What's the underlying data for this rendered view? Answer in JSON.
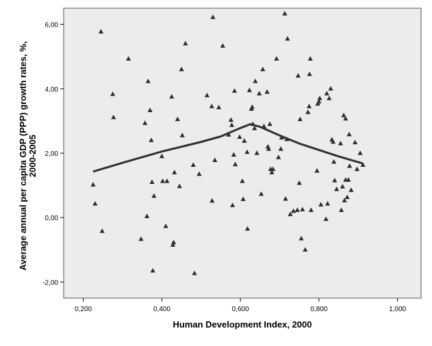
{
  "chart_data": {
    "type": "scatter",
    "xlabel": "Human Development Index, 2000",
    "ylabel_line1": "Average annual per capita GDP (PPP) growth rates, %,",
    "ylabel_line2": "2000-2005",
    "xlim": [
      0.15,
      1.06
    ],
    "ylim": [
      -2.5,
      6.5
    ],
    "x_ticks": [
      0.2,
      0.4,
      0.6,
      0.8,
      1.0
    ],
    "x_tick_labels": [
      "0,200",
      "0,400",
      "0,600",
      "0,800",
      "1,000"
    ],
    "y_ticks": [
      -2,
      0,
      2,
      4,
      6
    ],
    "y_tick_labels": [
      "-2,00",
      "0,00",
      "2,00",
      "4,00",
      "6,00"
    ],
    "grid": false,
    "legend": "none",
    "colors": {
      "plot_background": "#ececec",
      "marker": "#2e2e2e",
      "fit_line": "#303030"
    },
    "series": [
      {
        "values_kind": "scatter-triangles",
        "points": [
          [
            0.225,
            1.02
          ],
          [
            0.23,
            0.43
          ],
          [
            0.245,
            5.77
          ],
          [
            0.248,
            -0.42
          ],
          [
            0.275,
            3.83
          ],
          [
            0.277,
            3.11
          ],
          [
            0.315,
            4.93
          ],
          [
            0.347,
            -0.67
          ],
          [
            0.357,
            2.93
          ],
          [
            0.362,
            0.04
          ],
          [
            0.365,
            4.23
          ],
          [
            0.37,
            3.33
          ],
          [
            0.373,
            2.4
          ],
          [
            0.375,
            1.1
          ],
          [
            0.377,
            -1.65
          ],
          [
            0.38,
            0.67
          ],
          [
            0.4,
            1.9
          ],
          [
            0.402,
            1.13
          ],
          [
            0.41,
            -0.27
          ],
          [
            0.413,
            1.13
          ],
          [
            0.425,
            3.75
          ],
          [
            0.428,
            -0.85
          ],
          [
            0.43,
            -0.77
          ],
          [
            0.432,
            1.4
          ],
          [
            0.44,
            3.05
          ],
          [
            0.445,
            0.97
          ],
          [
            0.45,
            4.6
          ],
          [
            0.452,
            2.55
          ],
          [
            0.46,
            5.4
          ],
          [
            0.48,
            1.63
          ],
          [
            0.483,
            -1.73
          ],
          [
            0.495,
            1.35
          ],
          [
            0.515,
            3.79
          ],
          [
            0.527,
            3.45
          ],
          [
            0.528,
            0.52
          ],
          [
            0.53,
            6.22
          ],
          [
            0.535,
            1.78
          ],
          [
            0.545,
            3.42
          ],
          [
            0.555,
            5.33
          ],
          [
            0.57,
            2.57
          ],
          [
            0.576,
            3.03
          ],
          [
            0.578,
            2.87
          ],
          [
            0.58,
            0.38
          ],
          [
            0.583,
            1.95
          ],
          [
            0.585,
            3.93
          ],
          [
            0.587,
            1.65
          ],
          [
            0.598,
            2.5
          ],
          [
            0.605,
            1.13
          ],
          [
            0.607,
            0.57
          ],
          [
            0.61,
            2.38
          ],
          [
            0.617,
            2.03
          ],
          [
            0.618,
            -0.35
          ],
          [
            0.623,
            3.95
          ],
          [
            0.628,
            3.37
          ],
          [
            0.63,
            3.43
          ],
          [
            0.632,
            2.9
          ],
          [
            0.636,
            2.77
          ],
          [
            0.638,
            4.23
          ],
          [
            0.642,
            2.0
          ],
          [
            0.648,
            3.85
          ],
          [
            0.653,
            0.73
          ],
          [
            0.657,
            4.6
          ],
          [
            0.66,
            2.83
          ],
          [
            0.668,
            3.9
          ],
          [
            0.67,
            2.2
          ],
          [
            0.672,
            2.13
          ],
          [
            0.675,
            2.9
          ],
          [
            0.677,
            1.5
          ],
          [
            0.68,
            1.4
          ],
          [
            0.683,
            1.5
          ],
          [
            0.692,
            4.93
          ],
          [
            0.697,
            1.87
          ],
          [
            0.703,
            2.13
          ],
          [
            0.705,
            2.48
          ],
          [
            0.713,
            6.33
          ],
          [
            0.718,
            2.43
          ],
          [
            0.715,
            0.58
          ],
          [
            0.72,
            5.55
          ],
          [
            0.727,
            0.1
          ],
          [
            0.735,
            0.2
          ],
          [
            0.745,
            0.23
          ],
          [
            0.747,
            4.4
          ],
          [
            0.75,
            1.07
          ],
          [
            0.752,
            3.05
          ],
          [
            0.755,
            -0.65
          ],
          [
            0.758,
            0.25
          ],
          [
            0.765,
            -1.0
          ],
          [
            0.772,
            3.27
          ],
          [
            0.775,
            3.45
          ],
          [
            0.776,
            4.45
          ],
          [
            0.778,
            4.93
          ],
          [
            0.78,
            0.23
          ],
          [
            0.795,
            1.45
          ],
          [
            0.797,
            3.53
          ],
          [
            0.8,
            3.6
          ],
          [
            0.802,
            3.7
          ],
          [
            0.805,
            0.4
          ],
          [
            0.818,
            -0.05
          ],
          [
            0.82,
            3.85
          ],
          [
            0.822,
            0.43
          ],
          [
            0.826,
            3.7
          ],
          [
            0.83,
            4.0
          ],
          [
            0.833,
            2.42
          ],
          [
            0.836,
            2.35
          ],
          [
            0.838,
            1.73
          ],
          [
            0.84,
            1.15
          ],
          [
            0.845,
            0.88
          ],
          [
            0.855,
            2.3
          ],
          [
            0.857,
            0.23
          ],
          [
            0.86,
            0.96
          ],
          [
            0.863,
            3.17
          ],
          [
            0.865,
            0.53
          ],
          [
            0.868,
            1.17
          ],
          [
            0.868,
            3.07
          ],
          [
            0.872,
            0.63
          ],
          [
            0.875,
            1.17
          ],
          [
            0.877,
            2.58
          ],
          [
            0.878,
            1.6
          ],
          [
            0.882,
            0.85
          ],
          [
            0.892,
            2.33
          ],
          [
            0.897,
            1.5
          ],
          [
            0.905,
            2.0
          ],
          [
            0.912,
            1.63
          ]
        ]
      }
    ],
    "fit_line": [
      [
        0.225,
        1.43
      ],
      [
        0.3,
        1.7
      ],
      [
        0.4,
        2.05
      ],
      [
        0.5,
        2.35
      ],
      [
        0.55,
        2.52
      ],
      [
        0.6,
        2.78
      ],
      [
        0.625,
        2.9
      ],
      [
        0.65,
        2.82
      ],
      [
        0.7,
        2.55
      ],
      [
        0.75,
        2.3
      ],
      [
        0.8,
        2.1
      ],
      [
        0.85,
        1.9
      ],
      [
        0.912,
        1.68
      ]
    ]
  }
}
